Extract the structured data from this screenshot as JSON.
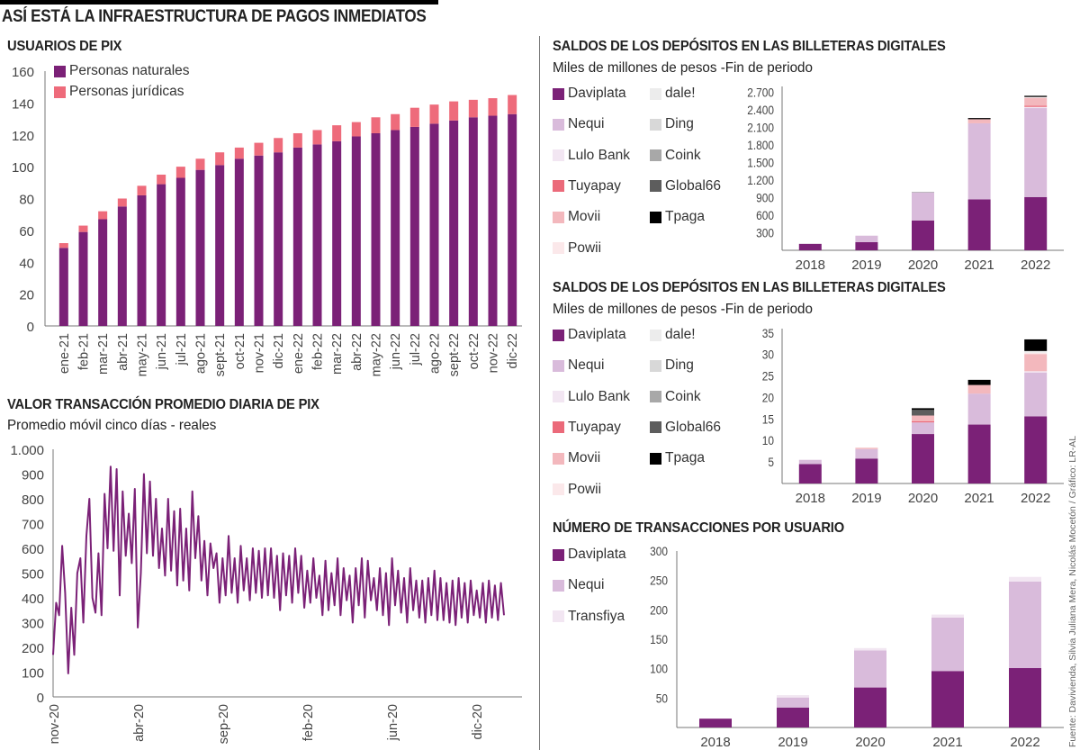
{
  "header": {
    "title": "ASÍ ESTÁ LA INFRAESTRUCTURA DE PAGOS INMEDIATOS"
  },
  "source": "Fuente: Davivienda, Silvia Juliana Mera, Nicolás Mocetón / Gráfico: LR-AL",
  "colors": {
    "Daviplata": "#7b2177",
    "Nequi": "#d9bbdb",
    "Lulo Bank": "#f2e6f2",
    "Tuyapay": "#eb6a7a",
    "Movii": "#f3b8bd",
    "Powii": "#fbe8ea",
    "dale!": "#ececec",
    "Ding": "#d8d8d8",
    "Coink": "#a8a8a8",
    "Global66": "#5d5d5d",
    "Tpaga": "#000000",
    "Transfiya": "#f2e6f2",
    "Personas naturales": "#7b2177",
    "Personas jurídicas": "#ee6b7b",
    "line": "#7b2177"
  },
  "chart_data": [
    {
      "id": "usuarios",
      "type": "bar",
      "stacked": true,
      "title": "USUARIOS DE PIX",
      "xlabel": "",
      "ylabel": "",
      "ylim": [
        0,
        160
      ],
      "yticks": [
        0,
        20,
        40,
        60,
        80,
        100,
        120,
        140,
        160
      ],
      "grid": false,
      "legend": "top-left",
      "categories": [
        "ene-21",
        "feb-21",
        "mar-21",
        "abr-21",
        "may-21",
        "jun-21",
        "jul-21",
        "ago-21",
        "sept-21",
        "oct-21",
        "nov-21",
        "dic-21",
        "ene-22",
        "feb-22",
        "mar-22",
        "abr-22",
        "may-22",
        "jun-22",
        "jul-22",
        "ago-22",
        "sept-22",
        "oct-22",
        "nov-22",
        "dic-22"
      ],
      "series": [
        {
          "name": "Personas naturales",
          "values": [
            49,
            59,
            67,
            75,
            82,
            89,
            93,
            98,
            101,
            105,
            107,
            109,
            112,
            114,
            116,
            119,
            121,
            123,
            125,
            127,
            129,
            131,
            132,
            133
          ]
        },
        {
          "name": "Personas jurídicas",
          "values": [
            3,
            4,
            5,
            5,
            6,
            6,
            7,
            7,
            8,
            7,
            8,
            9,
            9,
            9,
            10,
            9,
            10,
            10,
            12,
            12,
            12,
            11,
            11,
            12
          ]
        }
      ]
    },
    {
      "id": "valor",
      "type": "line",
      "title": "VALOR TRANSACCIÓN PROMEDIO DIARIA DE PIX",
      "subtitle": "Promedio móvil cinco días - reales",
      "xlabel": "",
      "ylabel": "",
      "ylim": [
        0,
        1000
      ],
      "yticks": [
        "0",
        "100",
        "200",
        "300",
        "400",
        "500",
        "600",
        "700",
        "800",
        "900",
        "1.000"
      ],
      "ytick_values": [
        0,
        100,
        200,
        300,
        400,
        500,
        600,
        700,
        800,
        900,
        1000
      ],
      "xticks": [
        "nov-20",
        "abr-20",
        "sep-20",
        "feb-20",
        "jun-20",
        "dic-20"
      ],
      "grid": false,
      "series": [
        {
          "name": "Valor promedio",
          "values": [
            170,
            380,
            330,
            610,
            420,
            95,
            360,
            170,
            500,
            560,
            300,
            650,
            800,
            400,
            340,
            580,
            330,
            820,
            600,
            930,
            590,
            920,
            410,
            830,
            570,
            740,
            540,
            840,
            280,
            500,
            900,
            580,
            870,
            570,
            800,
            520,
            680,
            490,
            800,
            510,
            750,
            450,
            760,
            470,
            680,
            430,
            830,
            560,
            730,
            470,
            630,
            410,
            620,
            520,
            580,
            380,
            560,
            410,
            650,
            420,
            560,
            380,
            610,
            430,
            560,
            390,
            600,
            420,
            590,
            400,
            600,
            410,
            600,
            400,
            570,
            350,
            580,
            410,
            570,
            380,
            600,
            420,
            570,
            360,
            510,
            380,
            560,
            400,
            490,
            330,
            550,
            350,
            500,
            370,
            560,
            330,
            520,
            390,
            490,
            300,
            520,
            370,
            560,
            320,
            550,
            390,
            480,
            350,
            520,
            330,
            500,
            290,
            560,
            370,
            510,
            340,
            480,
            300,
            520,
            350,
            470,
            320,
            470,
            300,
            480,
            330,
            510,
            310,
            480,
            310,
            460,
            300,
            470,
            290,
            480,
            320,
            460,
            300,
            470,
            330,
            430,
            320,
            460,
            300,
            470,
            320,
            450,
            310,
            460,
            330
          ]
        }
      ]
    },
    {
      "id": "saldos_a",
      "type": "bar",
      "stacked": true,
      "title": "SALDOS DE LOS DEPÓSITOS EN LAS BILLETERAS DIGITALES",
      "subtitle": "Miles de millones de pesos -Fin de periodo",
      "xlabel": "",
      "ylabel": "",
      "ylim": [
        0,
        2800
      ],
      "yticks": [
        "300",
        "600",
        "900",
        "1.200",
        "1.500",
        "1.800",
        "2.100",
        "2.400",
        "2.700"
      ],
      "ytick_values": [
        300,
        600,
        900,
        1200,
        1500,
        1800,
        2100,
        2400,
        2700
      ],
      "grid": false,
      "legend": "left",
      "categories": [
        "2018",
        "2019",
        "2020",
        "2021",
        "2022"
      ],
      "series": [
        {
          "name": "Daviplata",
          "values": [
            110,
            140,
            510,
            870,
            910
          ]
        },
        {
          "name": "Nequi",
          "values": [
            0,
            110,
            480,
            1300,
            1520
          ]
        },
        {
          "name": "Lulo Bank",
          "values": [
            0,
            0,
            0,
            0,
            20
          ]
        },
        {
          "name": "Tuyapay",
          "values": [
            0,
            0,
            0,
            0,
            20
          ]
        },
        {
          "name": "Movii",
          "values": [
            0,
            0,
            0,
            70,
            130
          ]
        },
        {
          "name": "Powii",
          "values": [
            0,
            0,
            0,
            0,
            20
          ]
        },
        {
          "name": "dale!",
          "values": [
            0,
            0,
            0,
            0,
            0
          ]
        },
        {
          "name": "Ding",
          "values": [
            0,
            0,
            0,
            0,
            0
          ]
        },
        {
          "name": "Coink",
          "values": [
            0,
            0,
            10,
            0,
            0
          ]
        },
        {
          "name": "Global66",
          "values": [
            0,
            0,
            0,
            0,
            0
          ]
        },
        {
          "name": "Tpaga",
          "values": [
            0,
            0,
            0,
            20,
            20
          ]
        }
      ]
    },
    {
      "id": "saldos_b",
      "type": "bar",
      "stacked": true,
      "title": "SALDOS DE LOS DEPÓSITOS EN LAS BILLETERAS DIGITALES",
      "subtitle": "Miles de millones de pesos -Fin de periodo",
      "xlabel": "",
      "ylabel": "",
      "ylim": [
        0,
        36
      ],
      "yticks": [
        "5",
        "10",
        "15",
        "20",
        "25",
        "30",
        "35"
      ],
      "ytick_values": [
        5,
        10,
        15,
        20,
        25,
        30,
        35
      ],
      "grid": false,
      "legend": "left",
      "categories": [
        "2018",
        "2019",
        "2020",
        "2021",
        "2022"
      ],
      "series": [
        {
          "name": "Daviplata",
          "values": [
            4.5,
            5.8,
            11.5,
            13.7,
            15.6
          ]
        },
        {
          "name": "Nequi",
          "values": [
            1.0,
            2.2,
            2.7,
            7.2,
            10.2
          ]
        },
        {
          "name": "Lulo Bank",
          "values": [
            0,
            0,
            0,
            0,
            0.3
          ]
        },
        {
          "name": "Tuyapay",
          "values": [
            0,
            0,
            0.3,
            0,
            0
          ]
        },
        {
          "name": "Movii",
          "values": [
            0,
            0.3,
            1.3,
            2.0,
            4.0
          ]
        },
        {
          "name": "Powii",
          "values": [
            0,
            0,
            0,
            0,
            0.3
          ]
        },
        {
          "name": "dale!",
          "values": [
            0,
            0,
            0,
            0,
            0.4
          ]
        },
        {
          "name": "Ding",
          "values": [
            0,
            0,
            0,
            0,
            0
          ]
        },
        {
          "name": "Coink",
          "values": [
            0,
            0,
            0,
            0,
            0
          ]
        },
        {
          "name": "Global66",
          "values": [
            0,
            0,
            1.3,
            0,
            0
          ]
        },
        {
          "name": "Tpaga",
          "values": [
            0,
            0,
            0.4,
            1.2,
            2.7
          ]
        }
      ]
    },
    {
      "id": "transacciones",
      "type": "bar",
      "stacked": true,
      "title": "NÚMERO DE TRANSACCIONES POR USUARIO",
      "xlabel": "",
      "ylabel": "",
      "ylim": [
        0,
        300
      ],
      "yticks": [
        "50",
        "100",
        "150",
        "200",
        "250",
        "300"
      ],
      "ytick_values": [
        50,
        100,
        150,
        200,
        250,
        300
      ],
      "grid": false,
      "legend": "left",
      "categories": [
        "2018",
        "2019",
        "2020",
        "2021",
        "2022"
      ],
      "series": [
        {
          "name": "Daviplata",
          "values": [
            15,
            34,
            68,
            96,
            101
          ]
        },
        {
          "name": "Nequi",
          "values": [
            0,
            17,
            63,
            91,
            147
          ]
        },
        {
          "name": "Transfiya",
          "values": [
            0,
            4,
            4,
            5,
            8
          ]
        }
      ]
    }
  ],
  "legends": {
    "usuarios": [
      "Personas naturales",
      "Personas jurídicas"
    ],
    "saldos_col1": [
      "Daviplata",
      "Nequi",
      "Lulo Bank",
      "Tuyapay",
      "Movii",
      "Powii"
    ],
    "saldos_col2": [
      "dale!",
      "Ding",
      "Coink",
      "Global66",
      "Tpaga"
    ],
    "transacciones": [
      "Daviplata",
      "Nequi",
      "Transfiya"
    ]
  }
}
